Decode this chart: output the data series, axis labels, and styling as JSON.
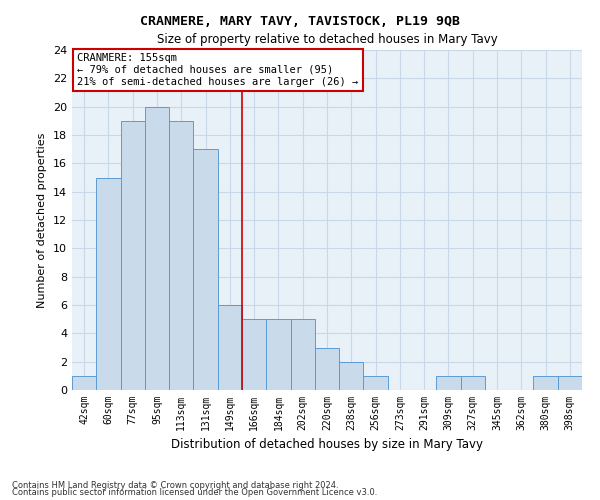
{
  "title": "CRANMERE, MARY TAVY, TAVISTOCK, PL19 9QB",
  "subtitle": "Size of property relative to detached houses in Mary Tavy",
  "xlabel": "Distribution of detached houses by size in Mary Tavy",
  "ylabel": "Number of detached properties",
  "categories": [
    "42sqm",
    "60sqm",
    "77sqm",
    "95sqm",
    "113sqm",
    "131sqm",
    "149sqm",
    "166sqm",
    "184sqm",
    "202sqm",
    "220sqm",
    "238sqm",
    "256sqm",
    "273sqm",
    "291sqm",
    "309sqm",
    "327sqm",
    "345sqm",
    "362sqm",
    "380sqm",
    "398sqm"
  ],
  "values": [
    1,
    15,
    19,
    20,
    19,
    17,
    6,
    5,
    5,
    5,
    3,
    2,
    1,
    0,
    0,
    1,
    1,
    0,
    0,
    1,
    1
  ],
  "bar_color": "#c9daea",
  "bar_edge_color": "#5b9bd5",
  "grid_color": "#c8d8e8",
  "background_color": "#e8f0f8",
  "vline_x": 6.5,
  "vline_color": "#cc0000",
  "annotation_text": "CRANMERE: 155sqm\n← 79% of detached houses are smaller (95)\n21% of semi-detached houses are larger (26) →",
  "annotation_box_facecolor": "#ffffff",
  "annotation_box_edgecolor": "#cc0000",
  "ylim": [
    0,
    24
  ],
  "yticks": [
    0,
    2,
    4,
    6,
    8,
    10,
    12,
    14,
    16,
    18,
    20,
    22,
    24
  ],
  "footnote1": "Contains HM Land Registry data © Crown copyright and database right 2024.",
  "footnote2": "Contains public sector information licensed under the Open Government Licence v3.0."
}
